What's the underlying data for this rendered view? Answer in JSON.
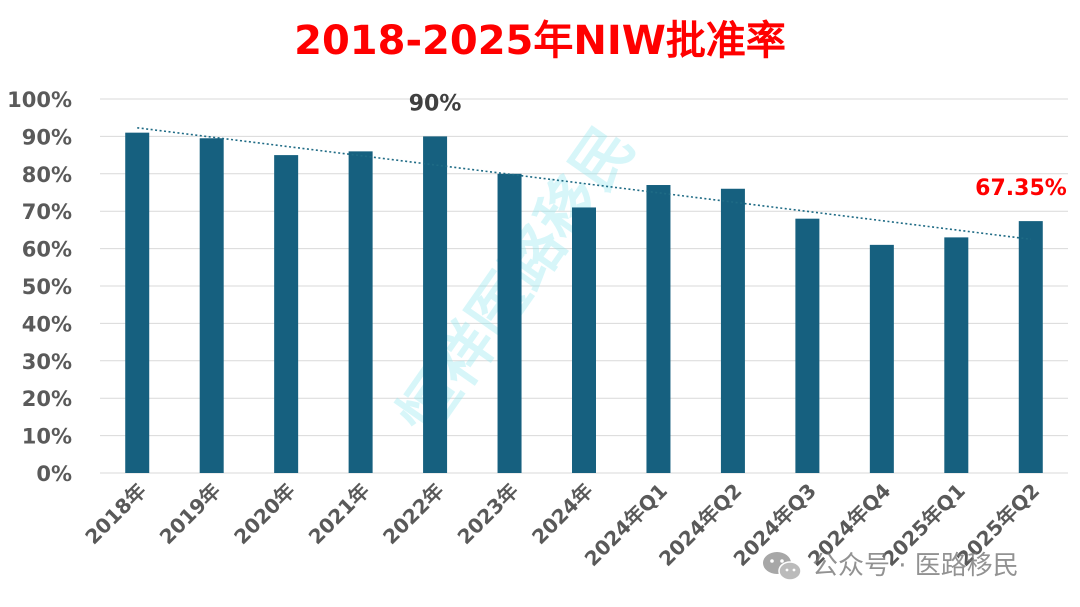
{
  "chart_data": {
    "type": "bar",
    "title": "2018-2025年NIW批准率",
    "categories": [
      "2018年",
      "2019年",
      "2020年",
      "2021年",
      "2022年",
      "2023年",
      "2024年",
      "2024年Q1",
      "2024年Q2",
      "2024年Q3",
      "2024年Q4",
      "2025年Q1",
      "2025年Q2"
    ],
    "values": [
      91,
      89.5,
      85,
      86,
      90,
      80,
      71,
      77,
      76,
      68,
      61,
      63,
      67.35
    ],
    "ylim": [
      0,
      100
    ],
    "yticks": [
      "0%",
      "10%",
      "20%",
      "30%",
      "40%",
      "50%",
      "60%",
      "70%",
      "80%",
      "90%",
      "100%"
    ],
    "ytick_values": [
      0,
      10,
      20,
      30,
      40,
      50,
      60,
      70,
      80,
      90,
      100
    ],
    "data_labels": [
      {
        "index": 4,
        "text": "90%",
        "color": "#404040"
      },
      {
        "index": 12,
        "text": "67.35%",
        "color": "#ff0000"
      }
    ],
    "trendline": {
      "style": "dotted",
      "start_value": 92.3,
      "end_value": 62.5
    },
    "grid": true,
    "legend": "none",
    "xlabel": "",
    "ylabel": ""
  },
  "colors": {
    "bar": "#16607f",
    "title": "#ff0000",
    "trendline": "#1f6b85",
    "grid": "#d9d9d9"
  },
  "watermark": {
    "text": "恒祥医路移民"
  },
  "credit": {
    "icon": "wechat-icon",
    "text": "公众号 · 医路移民"
  }
}
